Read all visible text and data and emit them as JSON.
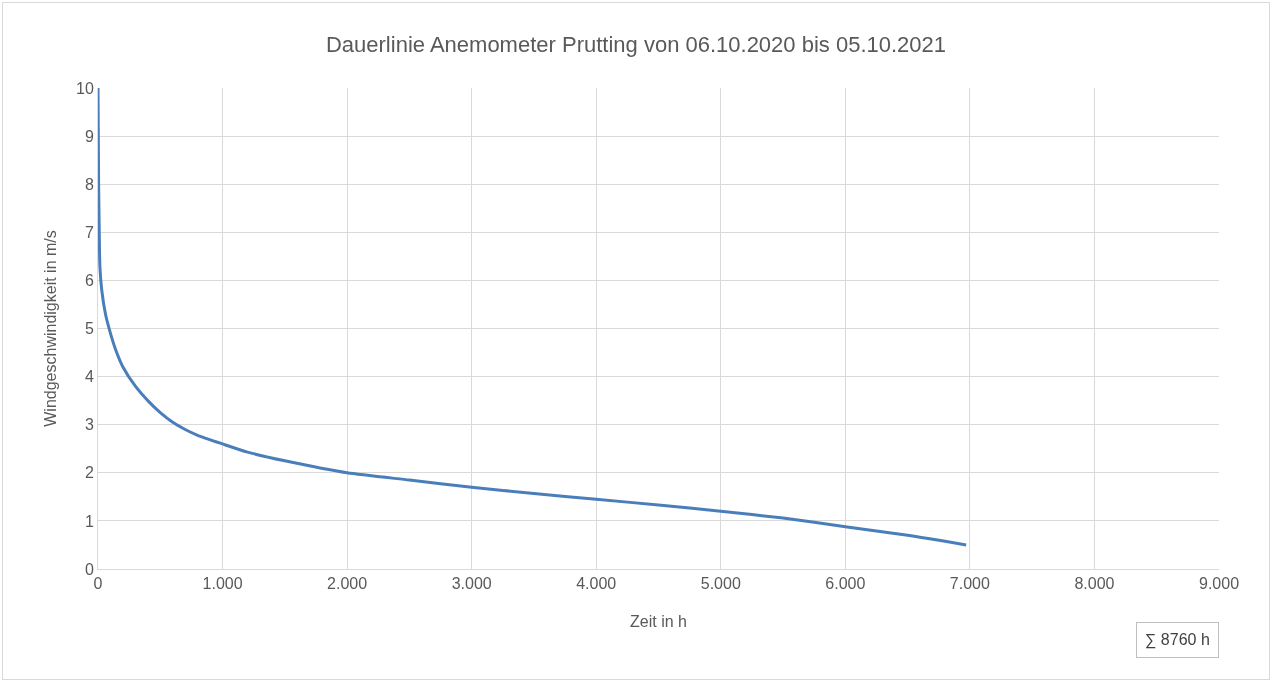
{
  "chart_data": {
    "type": "line",
    "title": "Dauerlinie Anemometer Prutting von 06.10.2020 bis 05.10.2021",
    "xlabel": "Zeit in h",
    "ylabel": "Windgeschwindigkeit in m/s",
    "x": [
      0,
      5,
      10,
      15,
      30,
      60,
      100,
      150,
      200,
      300,
      400,
      500,
      600,
      700,
      800,
      1000,
      1200,
      1500,
      2000,
      2500,
      3000,
      3500,
      4000,
      4500,
      5000,
      5500,
      6000,
      6500,
      6970
    ],
    "series": [
      {
        "color": "#4a7ebb",
        "values": [
          10,
          8,
          7,
          6.3,
          5.8,
          5.3,
          4.9,
          4.5,
          4.2,
          3.8,
          3.5,
          3.25,
          3.05,
          2.9,
          2.78,
          2.6,
          2.43,
          2.25,
          2.0,
          1.85,
          1.7,
          1.57,
          1.45,
          1.33,
          1.2,
          1.06,
          0.88,
          0.7,
          0.5
        ]
      }
    ],
    "xlim": [
      0,
      9000
    ],
    "xticks": [
      0,
      {
        "value": 1000,
        "label": "1.000"
      },
      {
        "value": 2000,
        "label": "2.000"
      },
      {
        "value": 3000,
        "label": "3.000"
      },
      {
        "value": 4000,
        "label": "4.000"
      },
      {
        "value": 5000,
        "label": "5.000"
      },
      {
        "value": 6000,
        "label": "6.000"
      },
      {
        "value": 7000,
        "label": "7.000"
      },
      {
        "value": 8000,
        "label": "8.000"
      },
      {
        "value": 9000,
        "label": "9.000"
      }
    ],
    "ylim": [
      0,
      10
    ],
    "yticks": [
      0,
      1,
      2,
      3,
      4,
      5,
      6,
      7,
      8,
      9,
      10
    ],
    "grid": true,
    "marker": "none",
    "line_style": "solid",
    "annotations": [
      "∑ 8760 h"
    ]
  }
}
